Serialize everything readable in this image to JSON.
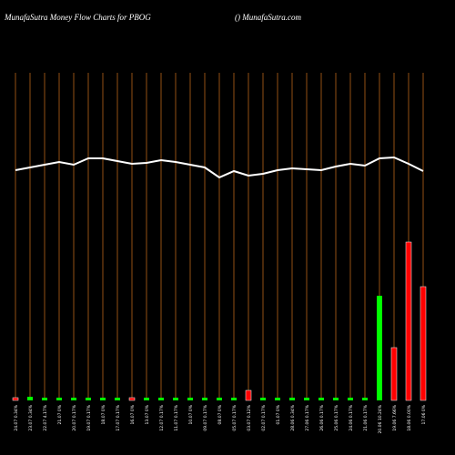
{
  "chart_data": {
    "type": "moneyflow",
    "title": "MunafaSutra  Money Flow  Charts for PBOG",
    "subtitle": "() MunafaSutra.com",
    "categories": [
      "24.07 0.34%",
      "23.07 0.34%",
      "22.07 4.17%",
      "21.07 0%",
      "20.07 0.17%",
      "19.07 0.17%",
      "18.07 0%",
      "17.07 0.17%",
      "16.07 0%",
      "13.07 0%",
      "12.07 0.17%",
      "11.07 0.17%",
      "10.07 0%",
      "09.07 0.17%",
      "08.07 0%",
      "05.07 0.17%",
      "03.07 0.12%",
      "02.07 0.17%",
      "01.07 0%",
      "28.06 0.34%",
      "27.06 0.17%",
      "26.06 0.17%",
      "25.06 0.17%",
      "24.06 0.17%",
      "21.06 0.17%",
      "20.06 10.24%",
      "19.06 7.66%",
      "18.06 0.00%",
      "17.06 0%"
    ],
    "line": {
      "color": "#ffffff",
      "values": [
        253,
        256,
        259,
        262,
        259,
        266,
        266,
        263,
        260,
        261,
        264,
        262,
        259,
        256,
        245,
        252,
        247,
        249,
        253,
        255,
        254,
        253,
        257,
        260,
        258,
        266,
        267,
        260,
        252
      ]
    },
    "bars": {
      "values": [
        3,
        4,
        3,
        3,
        3,
        3,
        3,
        3,
        3,
        3,
        3,
        3,
        3,
        3,
        3,
        3,
        11,
        3,
        3,
        3,
        3,
        3,
        3,
        3,
        3,
        115,
        58,
        174,
        125
      ],
      "colors": [
        "#ff0000",
        "#00ff00",
        "#00ff00",
        "#00ff00",
        "#00ff00",
        "#00ff00",
        "#00ff00",
        "#00ff00",
        "#ff0000",
        "#00ff00",
        "#00ff00",
        "#00ff00",
        "#00ff00",
        "#00ff00",
        "#00ff00",
        "#00ff00",
        "#ff0000",
        "#00ff00",
        "#00ff00",
        "#00ff00",
        "#00ff00",
        "#00ff00",
        "#00ff00",
        "#00ff00",
        "#00ff00",
        "#00ff00",
        "#ff0000",
        "#ff0000",
        "#ff0000"
      ]
    },
    "grid_color": "#b8641a"
  }
}
